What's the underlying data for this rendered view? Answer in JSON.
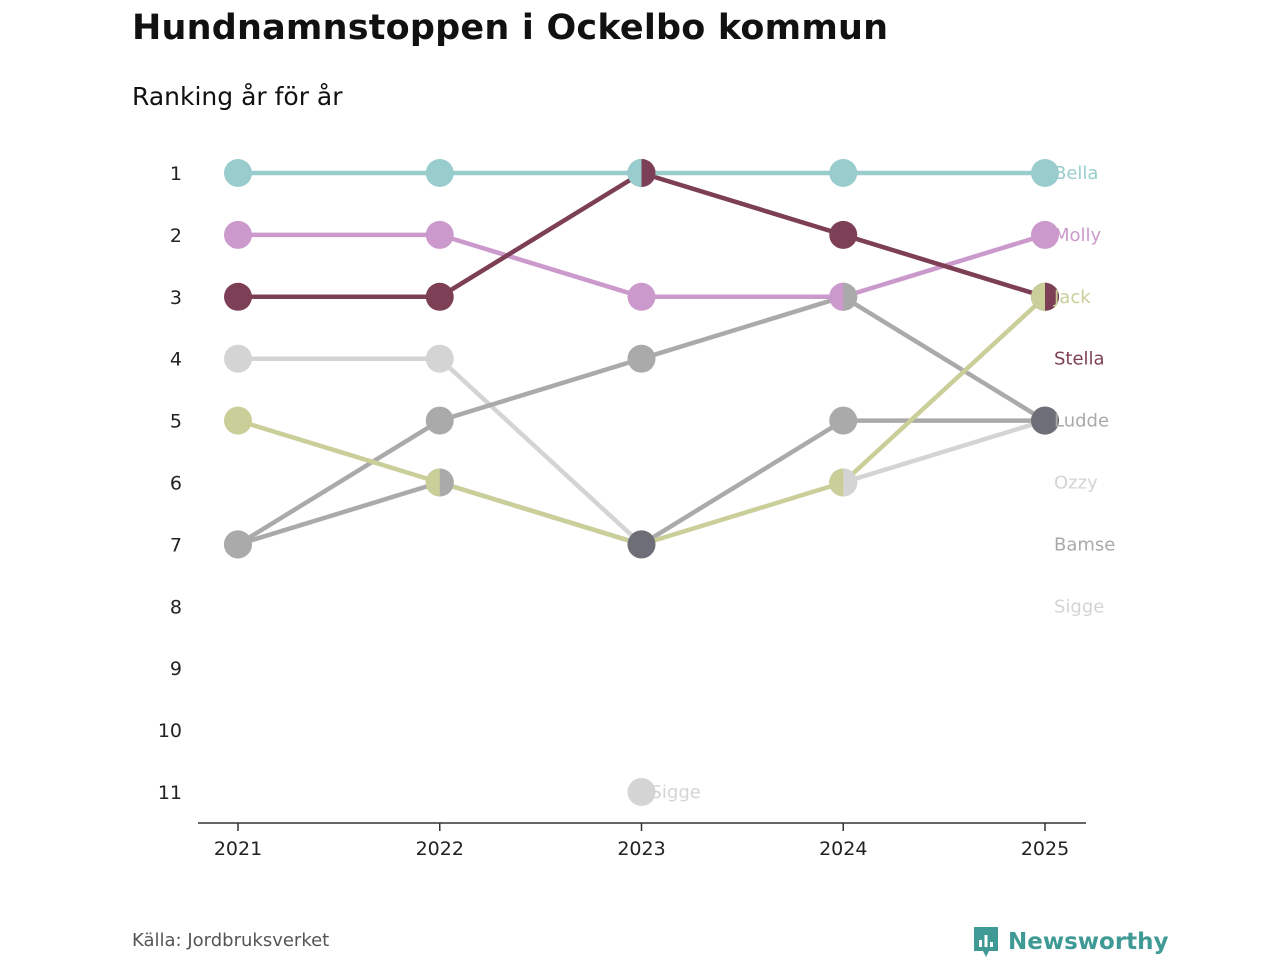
{
  "title": "Hundnamnstoppen i Ockelbo kommun",
  "subtitle": "Ranking år för år",
  "source": "Källa: Jordbruksverket",
  "brand": "Newsworthy",
  "brand_color": "#3f9a95",
  "chart_data": {
    "type": "line",
    "chart_kind": "bump",
    "x": [
      "2021",
      "2022",
      "2023",
      "2024",
      "2025"
    ],
    "ylim": [
      1,
      11
    ],
    "y_ticks": [
      "1",
      "2",
      "3",
      "4",
      "5",
      "6",
      "7",
      "8",
      "9",
      "10",
      "11"
    ],
    "y_reversed": true,
    "series": [
      {
        "name": "Sigge",
        "color": "#d4d4d4",
        "values": [
          4,
          4,
          7,
          null,
          null
        ]
      },
      {
        "name": "Ozzy",
        "color": "#d4d4d4",
        "values": [
          null,
          null,
          null,
          6,
          5
        ]
      },
      {
        "name": "Bamse",
        "color": "#aaaaaa",
        "values": [
          7,
          5,
          4,
          3,
          5
        ]
      },
      {
        "name": "Ludde",
        "color": "#aaaaaa",
        "values": [
          7,
          6,
          7,
          5,
          5
        ]
      },
      {
        "name": "Jack",
        "color": "#cacf99",
        "values": [
          5,
          6,
          7,
          6,
          3
        ]
      },
      {
        "name": "Molly",
        "color": "#cc99cc",
        "values": [
          2,
          2,
          3,
          3,
          2
        ]
      },
      {
        "name": "Stella",
        "color": "#7d3f55",
        "values": [
          3,
          3,
          1,
          2,
          3
        ]
      },
      {
        "name": "Bella",
        "color": "#99cccc",
        "values": [
          1,
          1,
          1,
          1,
          1
        ]
      }
    ],
    "extra_points": [
      {
        "name": "Sigge",
        "x": "2023",
        "y": 11,
        "color": "#d4d4d4"
      }
    ],
    "overlap_markers": [
      {
        "x": "2022",
        "y": 6,
        "colors": [
          "#cacf99",
          "#aaaaaa"
        ]
      },
      {
        "x": "2023",
        "y": 1,
        "colors": [
          "#99cccc",
          "#7d3f55"
        ]
      },
      {
        "x": "2023",
        "y": 7,
        "colors": [
          "#6e6e78",
          "#6e6e78"
        ]
      },
      {
        "x": "2024",
        "y": 3,
        "colors": [
          "#cc99cc",
          "#aaaaaa"
        ]
      },
      {
        "x": "2024",
        "y": 6,
        "colors": [
          "#cacf99",
          "#d4d4d4"
        ]
      },
      {
        "x": "2025",
        "y": 3,
        "colors": [
          "#cacf99",
          "#7d3f55"
        ]
      },
      {
        "x": "2025",
        "y": 5,
        "colors": [
          "#6e6e78",
          "#6e6e78"
        ]
      }
    ],
    "end_labels": [
      {
        "name": "Bella",
        "color": "#99cccc",
        "y": 1
      },
      {
        "name": "Molly",
        "color": "#cc99cc",
        "y": 2
      },
      {
        "name": "Jack",
        "color": "#cacf99",
        "y": 3
      },
      {
        "name": "Stella",
        "color": "#7d3f55",
        "y": 4
      },
      {
        "name": "Ludde",
        "color": "#aaaaaa",
        "y": 5
      },
      {
        "name": "Ozzy",
        "color": "#d4d4d4",
        "y": 6
      },
      {
        "name": "Bamse",
        "color": "#aaaaaa",
        "y": 7
      },
      {
        "name": "Sigge",
        "color": "#d4d4d4",
        "y": 8
      }
    ]
  }
}
